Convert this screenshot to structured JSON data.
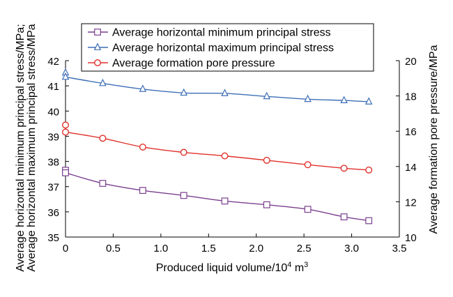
{
  "chart_data": {
    "type": "line",
    "xlabel": "Produced liquid volume/10⁴ m³",
    "ylabel_left": [
      "Average horizontal maximum principal stress/MPa",
      "Average horizontal minimum principal stress/MPa;"
    ],
    "ylabel_right": "Average formation pore pressure/MPa",
    "xlim": [
      0,
      3.5
    ],
    "ylim_left": [
      35,
      42
    ],
    "ylim_right": [
      10,
      20
    ],
    "x_ticks": [
      "0",
      "0.5",
      "1.0",
      "1.5",
      "2.0",
      "2.5",
      "3.0",
      "3.5"
    ],
    "y_ticks_left": [
      "35",
      "36",
      "37",
      "38",
      "39",
      "40",
      "41",
      "42"
    ],
    "y_ticks_right": [
      "10",
      "12",
      "14",
      "16",
      "18",
      "20"
    ],
    "grid": false,
    "legend_position": "top-center",
    "series": [
      {
        "name": "Average horizontal minimum principal stress",
        "axis": "left",
        "marker": "square",
        "color": "#7a3f8f",
        "points": [
          [
            0,
            37.65
          ],
          [
            0,
            37.55
          ],
          [
            0.39,
            37.13
          ],
          [
            0.81,
            36.85
          ],
          [
            1.24,
            36.65
          ],
          [
            1.67,
            36.43
          ],
          [
            2.11,
            36.28
          ],
          [
            2.54,
            36.1
          ],
          [
            2.92,
            35.8
          ],
          [
            3.18,
            35.65
          ]
        ]
      },
      {
        "name": "Average horizontal maximum principal stress",
        "axis": "left",
        "marker": "triangle",
        "color": "#3d6fb6",
        "points": [
          [
            0,
            41.52
          ],
          [
            0,
            41.35
          ],
          [
            0.39,
            41.1
          ],
          [
            0.81,
            40.87
          ],
          [
            1.24,
            40.72
          ],
          [
            1.67,
            40.7
          ],
          [
            2.11,
            40.58
          ],
          [
            2.54,
            40.47
          ],
          [
            2.92,
            40.42
          ],
          [
            3.18,
            40.37
          ]
        ]
      },
      {
        "name": "Average formation pore pressure",
        "axis": "right",
        "marker": "circle",
        "color": "#e0312b",
        "points": [
          [
            0,
            16.35
          ],
          [
            0,
            15.95
          ],
          [
            0.39,
            15.6
          ],
          [
            0.81,
            15.1
          ],
          [
            1.24,
            14.8
          ],
          [
            1.67,
            14.6
          ],
          [
            2.11,
            14.35
          ],
          [
            2.54,
            14.1
          ],
          [
            2.92,
            13.9
          ],
          [
            3.18,
            13.8
          ]
        ]
      }
    ]
  }
}
